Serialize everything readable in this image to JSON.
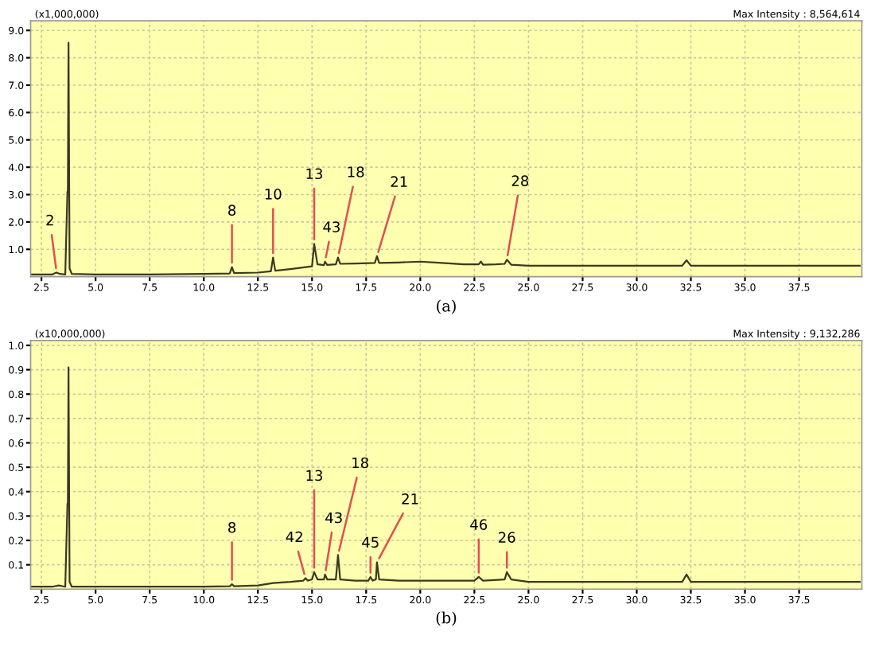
{
  "chart_data": [
    {
      "type": "line",
      "xlim": [
        2.0,
        40.4
      ],
      "ylim": [
        0,
        9.35
      ],
      "xticks": [
        2.5,
        {
          "value": 5,
          "label": "5.0"
        },
        7.5,
        {
          "value": 10,
          "label": "10.0"
        },
        12.5,
        {
          "value": 15,
          "label": "15.0"
        },
        17.5,
        {
          "value": 20,
          "label": "20.0"
        },
        22.5,
        {
          "value": 25,
          "label": "25.0"
        },
        27.5,
        {
          "value": 30,
          "label": "30.0"
        },
        32.5,
        {
          "value": 35,
          "label": "35.0"
        },
        37.5
      ],
      "yticks": [
        {
          "value": 1,
          "label": "1.0"
        },
        {
          "value": 2,
          "label": "2.0"
        },
        {
          "value": 3,
          "label": "3.0"
        },
        {
          "value": 4,
          "label": "4.0"
        },
        {
          "value": 5,
          "label": "5.0"
        },
        {
          "value": 6,
          "label": "6.0"
        },
        {
          "value": 7,
          "label": "7.0"
        },
        {
          "value": 8,
          "label": "8.0"
        },
        {
          "value": 9,
          "label": "9.0"
        }
      ],
      "grid": true,
      "marker": "none",
      "line_style": "solid",
      "series": [
        {
          "color": "#3a3a1e",
          "x": [
            2.0,
            3.0,
            3.1,
            3.2,
            3.35,
            3.6,
            3.7,
            3.72,
            3.75,
            3.8,
            3.9,
            5.0,
            7.5,
            10.0,
            11.2,
            11.3,
            11.4,
            12.5,
            13.1,
            13.2,
            13.3,
            14.0,
            15.0,
            15.1,
            15.25,
            15.55,
            15.6,
            15.7,
            16.1,
            16.2,
            16.3,
            17.0,
            17.9,
            18.0,
            18.1,
            19.0,
            20.0,
            21.0,
            22.0,
            22.7,
            22.8,
            22.9,
            23.5,
            23.9,
            24.0,
            24.2,
            25.0,
            27.5,
            30.0,
            32.1,
            32.3,
            32.5,
            35.0,
            37.5,
            40.3
          ],
          "values": [
            0.08,
            0.08,
            0.12,
            0.15,
            0.1,
            0.08,
            3.1,
            3.1,
            8.55,
            0.3,
            0.1,
            0.08,
            0.08,
            0.1,
            0.12,
            0.35,
            0.13,
            0.15,
            0.2,
            0.7,
            0.22,
            0.28,
            0.38,
            1.2,
            0.45,
            0.42,
            0.55,
            0.43,
            0.45,
            0.7,
            0.47,
            0.48,
            0.5,
            0.75,
            0.5,
            0.52,
            0.55,
            0.5,
            0.45,
            0.45,
            0.55,
            0.44,
            0.45,
            0.47,
            0.62,
            0.44,
            0.4,
            0.4,
            0.4,
            0.4,
            0.6,
            0.4,
            0.4,
            0.4,
            0.4
          ]
        }
      ],
      "annotations": [
        "(x1,000,000)",
        "Max Intensity : 8,564,614",
        "(a)",
        {
          "text": "2",
          "x": 3.2,
          "y": 0.15
        },
        {
          "text": "8",
          "x": 11.3,
          "y": 0.35
        },
        {
          "text": "10",
          "x": 13.2,
          "y": 0.7
        },
        {
          "text": "13",
          "x": 15.1,
          "y": 1.2
        },
        {
          "text": "43",
          "x": 15.6,
          "y": 0.55
        },
        {
          "text": "18",
          "x": 16.2,
          "y": 0.7
        },
        {
          "text": "21",
          "x": 18.0,
          "y": 0.75
        },
        {
          "text": "28",
          "x": 24.0,
          "y": 0.62
        }
      ]
    },
    {
      "type": "line",
      "xlim": [
        2.0,
        40.4
      ],
      "ylim": [
        0,
        1.02
      ],
      "xticks": [
        2.5,
        {
          "value": 5,
          "label": "5.0"
        },
        7.5,
        {
          "value": 10,
          "label": "10.0"
        },
        12.5,
        {
          "value": 15,
          "label": "15.0"
        },
        17.5,
        {
          "value": 20,
          "label": "20.0"
        },
        22.5,
        {
          "value": 25,
          "label": "25.0"
        },
        27.5,
        {
          "value": 30,
          "label": "30.0"
        },
        32.5,
        {
          "value": 35,
          "label": "35.0"
        },
        37.5
      ],
      "yticks": [
        0.1,
        0.2,
        0.3,
        0.4,
        0.5,
        0.6,
        0.7,
        0.8,
        0.9,
        {
          "value": 1,
          "label": "1.0"
        }
      ],
      "grid": true,
      "marker": "none",
      "line_style": "solid",
      "series": [
        {
          "color": "#3a3a1e",
          "x": [
            2.0,
            3.0,
            3.3,
            3.6,
            3.7,
            3.72,
            3.75,
            3.8,
            3.9,
            7.5,
            10.0,
            11.2,
            11.3,
            11.4,
            12.5,
            13.2,
            14.0,
            14.6,
            14.7,
            14.8,
            15.0,
            15.1,
            15.25,
            15.55,
            15.6,
            15.7,
            16.1,
            16.2,
            16.3,
            17.0,
            17.6,
            17.7,
            17.8,
            17.95,
            18.0,
            18.1,
            19.0,
            20.0,
            22.5,
            22.7,
            22.9,
            23.9,
            24.0,
            24.2,
            25.0,
            30.0,
            32.1,
            32.3,
            32.5,
            35.0,
            40.3
          ],
          "values": [
            0.01,
            0.01,
            0.015,
            0.01,
            0.35,
            0.35,
            0.91,
            0.03,
            0.01,
            0.01,
            0.01,
            0.012,
            0.02,
            0.012,
            0.015,
            0.025,
            0.03,
            0.035,
            0.045,
            0.035,
            0.04,
            0.07,
            0.04,
            0.04,
            0.06,
            0.04,
            0.04,
            0.14,
            0.04,
            0.035,
            0.035,
            0.05,
            0.035,
            0.04,
            0.11,
            0.04,
            0.035,
            0.035,
            0.035,
            0.05,
            0.035,
            0.04,
            0.07,
            0.04,
            0.03,
            0.03,
            0.03,
            0.06,
            0.03,
            0.03,
            0.03
          ]
        }
      ],
      "annotations": [
        "(x10,000,000)",
        "Max Intensity : 9,132,286",
        "(b)",
        {
          "text": "8",
          "x": 11.3,
          "y": 0.02
        },
        {
          "text": "42",
          "x": 14.7,
          "y": 0.045
        },
        {
          "text": "13",
          "x": 15.1,
          "y": 0.07
        },
        {
          "text": "43",
          "x": 15.6,
          "y": 0.06
        },
        {
          "text": "18",
          "x": 16.2,
          "y": 0.14
        },
        {
          "text": "45",
          "x": 17.7,
          "y": 0.05
        },
        {
          "text": "21",
          "x": 18.0,
          "y": 0.11
        },
        {
          "text": "46",
          "x": 22.7,
          "y": 0.05
        },
        {
          "text": "26",
          "x": 24.0,
          "y": 0.07
        }
      ]
    }
  ]
}
